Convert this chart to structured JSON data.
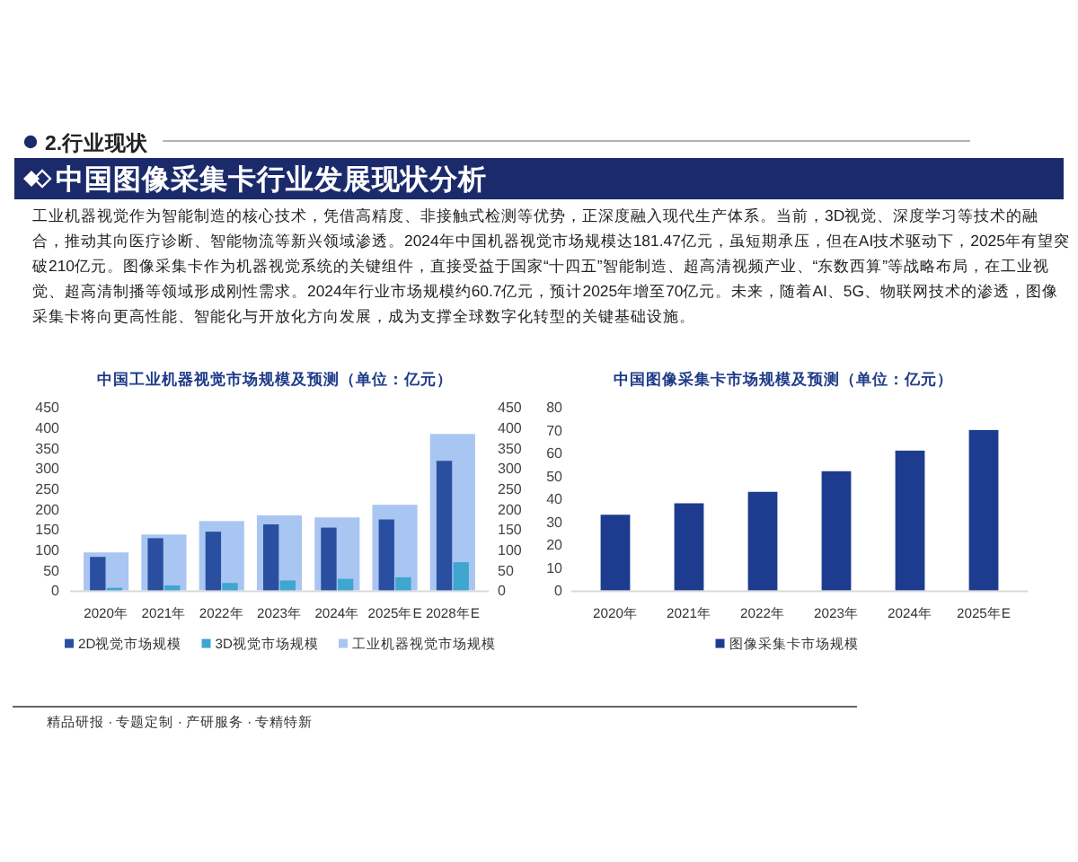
{
  "chart_data": [
    {
      "type": "other",
      "title": "中国图像采集卡行业发展现状分析",
      "annotations": [
        "2.行业现状",
        "工业机器视觉作为智能制造的核心技术，凭借高精度、非接触式检测等优势，正深度融入现代生产体系。当前，3D视觉、深度学习等技术的融合，推动其向医疗诊断、智能物流等新兴领域渗透。2024年中国机器视觉市场规模达181.47亿元，虽短期承压，但在AI技术驱动下，2025年有望突破210亿元。图像采集卡作为机器视觉系统的关键组件，直接受益于国家“十四五”智能制造、超高清视频产业、“东数西算”等战略布局，在工业视觉、超高清制播等领域形成刚性需求。2024年行业市场规模约60.7亿元，预计2025年增至70亿元。未来，随着AI、5G、物联网技术的渗透，图像采集卡将向更高性能、智能化与开放化方向发展，成为支撑全球数字化转型的关键基础设施。",
        "精品研报 · 专题定制 · 产研服务 · 专精特新"
      ]
    },
    {
      "type": "bar",
      "title": "中国工业机器视觉市场规模及预测（单位：亿元）",
      "categories": [
        "2020年",
        "2021年",
        "2022年",
        "2023年",
        "2024年",
        "2025年E",
        "2028年E"
      ],
      "series": [
        {
          "name": "2D视觉市场规模",
          "color": "#2b4fa0",
          "values": [
            82,
            128,
            144,
            162,
            154,
            174,
            318
          ]
        },
        {
          "name": "3D视觉市场规模",
          "color": "#3ea6cf",
          "values": [
            6,
            12,
            18,
            24,
            28,
            32,
            69
          ]
        },
        {
          "name": "工业机器视觉市场规模",
          "color": "#a9c5f2",
          "axis": "y2",
          "values": [
            93,
            137,
            170,
            184,
            179,
            210,
            384
          ]
        }
      ],
      "ylim": [
        0,
        450
      ],
      "yticks": [
        0,
        50,
        100,
        150,
        200,
        250,
        300,
        350,
        400,
        450
      ],
      "y2lim": [
        0,
        450
      ],
      "y2ticks": [
        0,
        50,
        100,
        150,
        200,
        250,
        300,
        350,
        400,
        450
      ],
      "legend": "bottom"
    },
    {
      "type": "bar",
      "title": "中国图像采集卡市场规模及预测（单位：亿元）",
      "categories": [
        "2020年",
        "2021年",
        "2022年",
        "2023年",
        "2024年",
        "2025年E"
      ],
      "series": [
        {
          "name": "图像采集卡市场规模",
          "color": "#1d3c8f",
          "values": [
            33,
            38,
            43,
            52,
            61,
            70
          ]
        }
      ],
      "ylim": [
        0,
        80
      ],
      "yticks": [
        0,
        10,
        20,
        30,
        40,
        50,
        60,
        70,
        80
      ],
      "legend": "bottom"
    }
  ]
}
